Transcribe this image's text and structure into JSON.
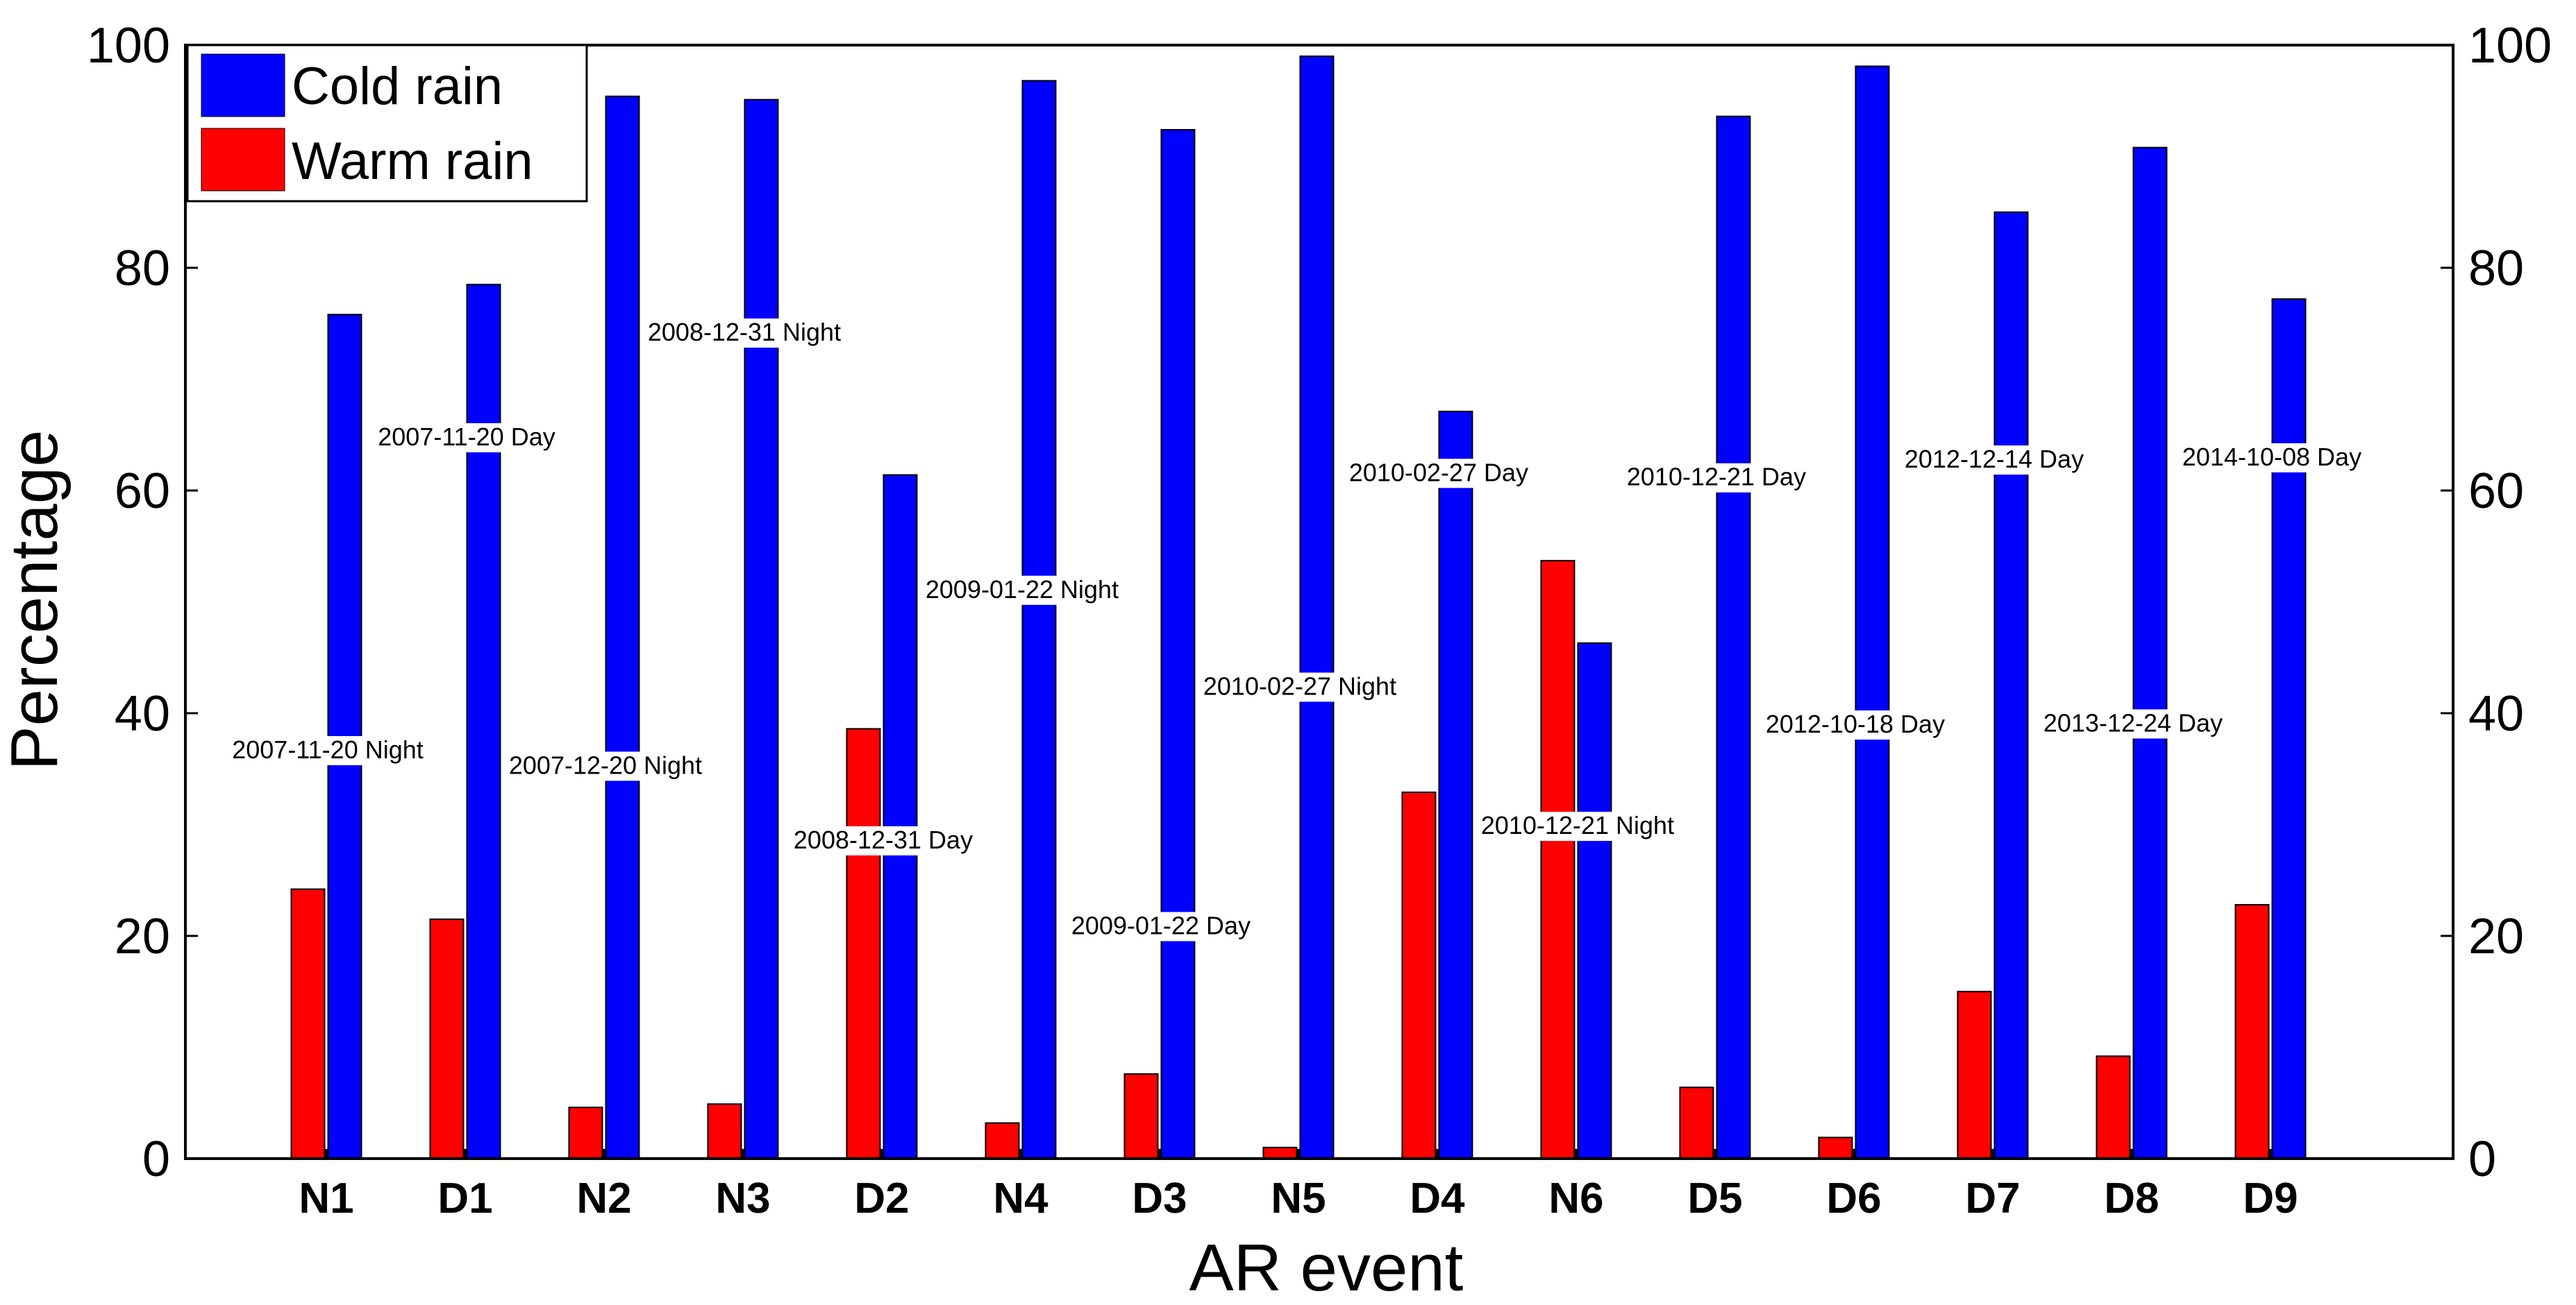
{
  "chart_data": {
    "type": "bar",
    "title": "",
    "xlabel": "AR event",
    "ylabel": "Percentage",
    "ylim": [
      0,
      100
    ],
    "yticks": [
      "0",
      "20",
      "40",
      "60",
      "80",
      "100"
    ],
    "right_yticks": [
      "0",
      "20",
      "40",
      "60",
      "80",
      "100"
    ],
    "categories": [
      "N1",
      "D1",
      "N2",
      "N3",
      "D2",
      "N4",
      "D3",
      "N5",
      "D4",
      "N6",
      "D5",
      "D6",
      "D7",
      "D8",
      "D9"
    ],
    "series": [
      {
        "name": "Warm rain",
        "color": "#ff0000",
        "values": [
          24.2,
          21.5,
          4.6,
          4.9,
          38.6,
          3.2,
          7.6,
          1.0,
          32.9,
          53.7,
          6.4,
          1.9,
          15.0,
          9.2,
          22.8
        ]
      },
      {
        "name": "Cold rain",
        "color": "#0000ff",
        "values": [
          75.8,
          78.5,
          95.4,
          95.1,
          61.4,
          96.8,
          92.4,
          99.0,
          67.1,
          46.3,
          93.6,
          98.1,
          85.0,
          90.8,
          77.2
        ]
      }
    ],
    "legend": {
      "position": "top-left",
      "entries": [
        "Cold rain",
        "Warm rain"
      ]
    },
    "annotations": [
      {
        "text": "2007-11-20 Night",
        "category": "N1",
        "y": 36.7
      },
      {
        "text": "2007-11-20 Day",
        "category": "D1",
        "y": 64.8
      },
      {
        "text": "2007-12-20 Night",
        "category": "N2",
        "y": 35.3
      },
      {
        "text": "2008-12-31 Night",
        "category": "N3",
        "y": 74.2
      },
      {
        "text": "2008-12-31 Day",
        "category": "D2",
        "y": 28.6
      },
      {
        "text": "2009-01-22 Night",
        "category": "N4",
        "y": 51.1
      },
      {
        "text": "2009-01-22 Day",
        "category": "D3",
        "y": 20.9
      },
      {
        "text": "2010-02-27 Night",
        "category": "N5",
        "y": 42.4
      },
      {
        "text": "2010-02-27 Day",
        "category": "D4",
        "y": 61.6
      },
      {
        "text": "2010-12-21 Night",
        "category": "N6",
        "y": 29.9
      },
      {
        "text": "2010-12-21 Day",
        "category": "D5",
        "y": 61.2
      },
      {
        "text": "2012-10-18 Day",
        "category": "D6",
        "y": 39.0
      },
      {
        "text": "2012-12-14 Day",
        "category": "D7",
        "y": 62.8
      },
      {
        "text": "2013-12-24 Day",
        "category": "D8",
        "y": 39.1
      },
      {
        "text": "2014-10-08 Day",
        "category": "D9",
        "y": 63.0
      }
    ]
  }
}
